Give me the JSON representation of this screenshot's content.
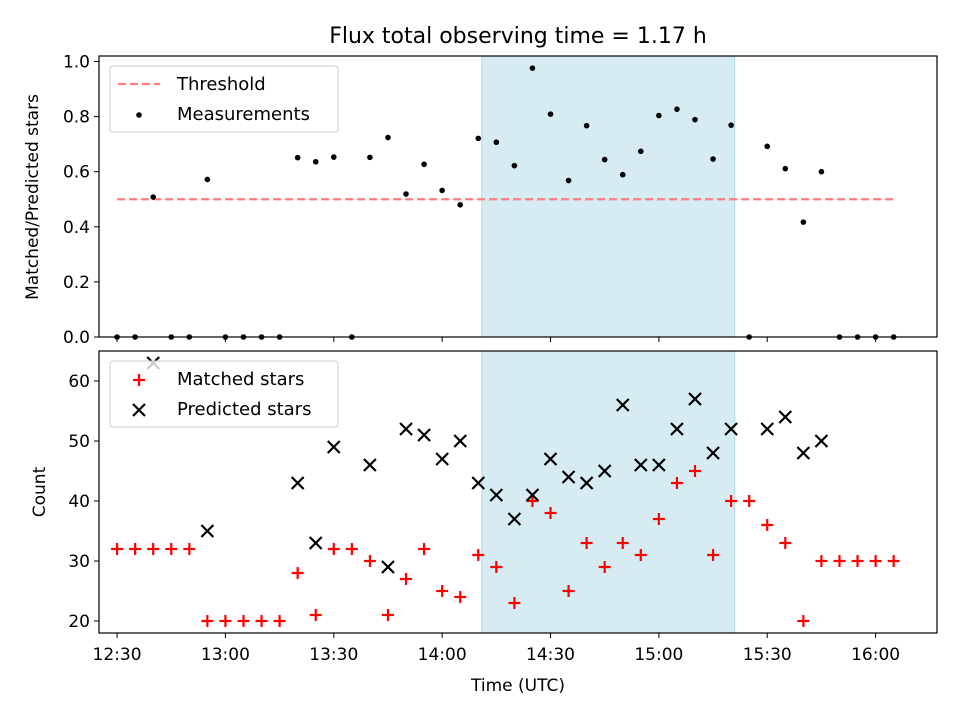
{
  "chart_data": {
    "title": "Flux total observing time = 1.17 h",
    "xlabel": "Time (UTC)",
    "x_ticks": [
      "12:30",
      "13:00",
      "13:30",
      "14:00",
      "14:30",
      "15:00",
      "15:30",
      "16:00"
    ],
    "xlim": [
      "12:25",
      "16:17"
    ],
    "highlight_span": {
      "start": "14:11",
      "end": "15:21",
      "color": "#add8e6"
    },
    "top_panel": {
      "type": "scatter",
      "ylabel": "Matched/Predicted stars",
      "ylim": [
        0,
        1.02
      ],
      "y_ticks": [
        "0.0",
        "0.2",
        "0.4",
        "0.6",
        "0.8",
        "1.0"
      ],
      "legend": {
        "placement": "upper-left",
        "threshold_label": "Threshold",
        "measurements_label": "Measurements"
      },
      "threshold": {
        "value": 0.5,
        "x_start": "12:30",
        "x_end": "16:05",
        "color": "#ff7f7f"
      },
      "measurements": [
        {
          "x": "12:30",
          "y": 0.0
        },
        {
          "x": "12:35",
          "y": 0.0
        },
        {
          "x": "12:40",
          "y": 0.508
        },
        {
          "x": "12:45",
          "y": 0.0
        },
        {
          "x": "12:50",
          "y": 0.0
        },
        {
          "x": "12:55",
          "y": 0.572
        },
        {
          "x": "13:00",
          "y": 0.0
        },
        {
          "x": "13:05",
          "y": 0.0
        },
        {
          "x": "13:10",
          "y": 0.0
        },
        {
          "x": "13:15",
          "y": 0.0
        },
        {
          "x": "13:20",
          "y": 0.651
        },
        {
          "x": "13:25",
          "y": 0.636
        },
        {
          "x": "13:30",
          "y": 0.653
        },
        {
          "x": "13:35",
          "y": 0.0
        },
        {
          "x": "13:40",
          "y": 0.652
        },
        {
          "x": "13:45",
          "y": 0.724
        },
        {
          "x": "13:50",
          "y": 0.519
        },
        {
          "x": "13:55",
          "y": 0.627
        },
        {
          "x": "14:00",
          "y": 0.532
        },
        {
          "x": "14:05",
          "y": 0.48
        },
        {
          "x": "14:10",
          "y": 0.721
        },
        {
          "x": "14:15",
          "y": 0.707
        },
        {
          "x": "14:20",
          "y": 0.622
        },
        {
          "x": "14:25",
          "y": 0.976
        },
        {
          "x": "14:30",
          "y": 0.809
        },
        {
          "x": "14:35",
          "y": 0.568
        },
        {
          "x": "14:40",
          "y": 0.767
        },
        {
          "x": "14:45",
          "y": 0.644
        },
        {
          "x": "14:50",
          "y": 0.589
        },
        {
          "x": "14:55",
          "y": 0.674
        },
        {
          "x": "15:00",
          "y": 0.804
        },
        {
          "x": "15:05",
          "y": 0.827
        },
        {
          "x": "15:10",
          "y": 0.789
        },
        {
          "x": "15:15",
          "y": 0.646
        },
        {
          "x": "15:20",
          "y": 0.769
        },
        {
          "x": "15:25",
          "y": 0.0
        },
        {
          "x": "15:30",
          "y": 0.692
        },
        {
          "x": "15:35",
          "y": 0.611
        },
        {
          "x": "15:40",
          "y": 0.417
        },
        {
          "x": "15:45",
          "y": 0.6
        },
        {
          "x": "15:50",
          "y": 0.0
        },
        {
          "x": "15:55",
          "y": 0.0
        },
        {
          "x": "16:00",
          "y": 0.0
        },
        {
          "x": "16:05",
          "y": 0.0
        }
      ]
    },
    "bottom_panel": {
      "type": "scatter",
      "ylabel": "Count",
      "ylim": [
        18,
        65
      ],
      "y_ticks": [
        "20",
        "30",
        "40",
        "50",
        "60"
      ],
      "legend": {
        "placement": "upper-left"
      },
      "series": [
        {
          "name": "Matched stars",
          "marker": "+",
          "color": "#ff0000",
          "points": [
            {
              "x": "12:30",
              "y": 32
            },
            {
              "x": "12:35",
              "y": 32
            },
            {
              "x": "12:40",
              "y": 32
            },
            {
              "x": "12:45",
              "y": 32
            },
            {
              "x": "12:50",
              "y": 32
            },
            {
              "x": "12:55",
              "y": 20
            },
            {
              "x": "13:00",
              "y": 20
            },
            {
              "x": "13:05",
              "y": 20
            },
            {
              "x": "13:10",
              "y": 20
            },
            {
              "x": "13:15",
              "y": 20
            },
            {
              "x": "13:20",
              "y": 28
            },
            {
              "x": "13:25",
              "y": 21
            },
            {
              "x": "13:30",
              "y": 32
            },
            {
              "x": "13:35",
              "y": 32
            },
            {
              "x": "13:40",
              "y": 30
            },
            {
              "x": "13:45",
              "y": 21
            },
            {
              "x": "13:50",
              "y": 27
            },
            {
              "x": "13:55",
              "y": 32
            },
            {
              "x": "14:00",
              "y": 25
            },
            {
              "x": "14:05",
              "y": 24
            },
            {
              "x": "14:10",
              "y": 31
            },
            {
              "x": "14:15",
              "y": 29
            },
            {
              "x": "14:20",
              "y": 23
            },
            {
              "x": "14:25",
              "y": 40
            },
            {
              "x": "14:30",
              "y": 38
            },
            {
              "x": "14:35",
              "y": 25
            },
            {
              "x": "14:40",
              "y": 33
            },
            {
              "x": "14:45",
              "y": 29
            },
            {
              "x": "14:50",
              "y": 33
            },
            {
              "x": "14:55",
              "y": 31
            },
            {
              "x": "15:00",
              "y": 37
            },
            {
              "x": "15:05",
              "y": 43
            },
            {
              "x": "15:10",
              "y": 45
            },
            {
              "x": "15:15",
              "y": 31
            },
            {
              "x": "15:20",
              "y": 40
            },
            {
              "x": "15:25",
              "y": 40
            },
            {
              "x": "15:30",
              "y": 36
            },
            {
              "x": "15:35",
              "y": 33
            },
            {
              "x": "15:40",
              "y": 20
            },
            {
              "x": "15:45",
              "y": 30
            },
            {
              "x": "15:50",
              "y": 30
            },
            {
              "x": "15:55",
              "y": 30
            },
            {
              "x": "16:00",
              "y": 30
            },
            {
              "x": "16:05",
              "y": 30
            }
          ]
        },
        {
          "name": "Predicted stars",
          "marker": "x",
          "color": "#000000",
          "points": [
            {
              "x": "12:40",
              "y": 63
            },
            {
              "x": "12:55",
              "y": 35
            },
            {
              "x": "13:20",
              "y": 43
            },
            {
              "x": "13:25",
              "y": 33
            },
            {
              "x": "13:30",
              "y": 49
            },
            {
              "x": "13:40",
              "y": 46
            },
            {
              "x": "13:45",
              "y": 29
            },
            {
              "x": "13:50",
              "y": 52
            },
            {
              "x": "13:55",
              "y": 51
            },
            {
              "x": "14:00",
              "y": 47
            },
            {
              "x": "14:05",
              "y": 50
            },
            {
              "x": "14:10",
              "y": 43
            },
            {
              "x": "14:15",
              "y": 41
            },
            {
              "x": "14:20",
              "y": 37
            },
            {
              "x": "14:25",
              "y": 41
            },
            {
              "x": "14:30",
              "y": 47
            },
            {
              "x": "14:35",
              "y": 44
            },
            {
              "x": "14:40",
              "y": 43
            },
            {
              "x": "14:45",
              "y": 45
            },
            {
              "x": "14:50",
              "y": 56
            },
            {
              "x": "14:55",
              "y": 46
            },
            {
              "x": "15:00",
              "y": 46
            },
            {
              "x": "15:05",
              "y": 52
            },
            {
              "x": "15:10",
              "y": 57
            },
            {
              "x": "15:15",
              "y": 48
            },
            {
              "x": "15:20",
              "y": 52
            },
            {
              "x": "15:30",
              "y": 52
            },
            {
              "x": "15:35",
              "y": 54
            },
            {
              "x": "15:40",
              "y": 48
            },
            {
              "x": "15:45",
              "y": 50
            }
          ]
        }
      ]
    }
  }
}
